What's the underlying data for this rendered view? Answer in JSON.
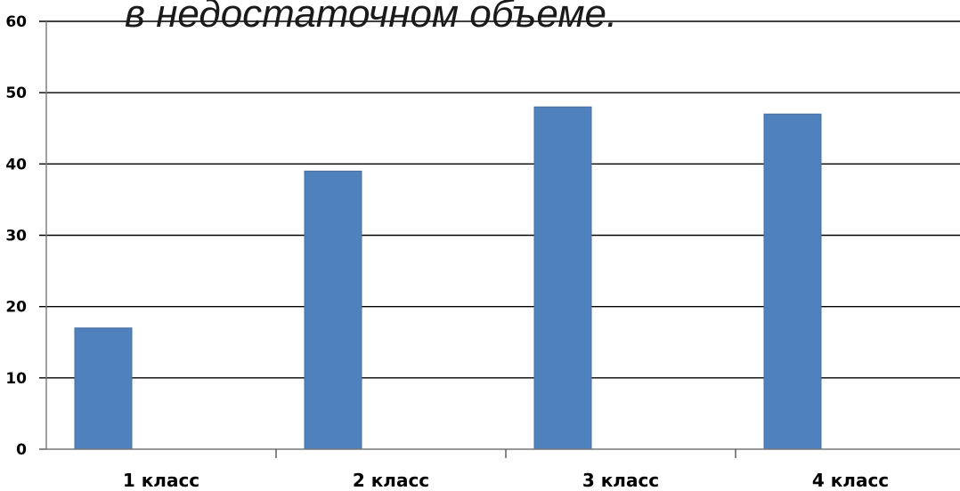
{
  "chart_data": {
    "type": "bar",
    "title": "в недостаточном объеме.",
    "categories": [
      "1 класс",
      "2 класс",
      "3 класс",
      "4 класс"
    ],
    "values": [
      17,
      39,
      48,
      47
    ],
    "ylim": [
      0,
      60
    ],
    "yticks": [
      "0",
      "10",
      "20",
      "30",
      "40",
      "50",
      "60"
    ],
    "grid": true,
    "legend": "none",
    "bar_color": "#4f81bd"
  }
}
